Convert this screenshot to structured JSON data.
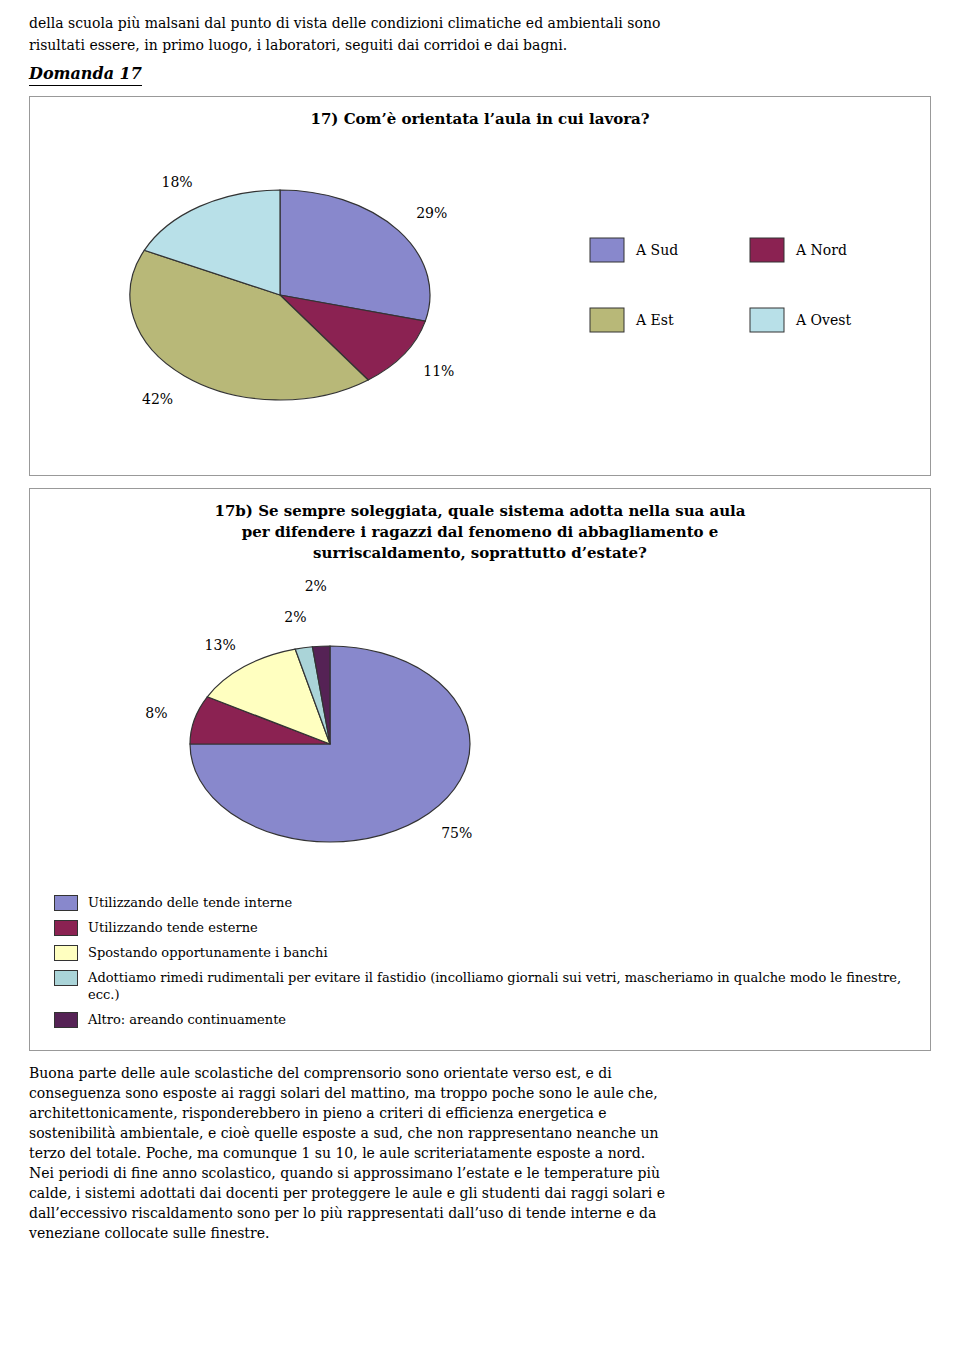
{
  "chart_data": [
    {
      "type": "pie",
      "title": "17) Com’è orientata l’aula in cui lavora?",
      "categories": [
        "A Sud",
        "A Nord",
        "A Est",
        "A Ovest"
      ],
      "values": [
        29,
        11,
        42,
        18
      ],
      "value_labels": [
        "29%",
        "11%",
        "42%",
        "18%"
      ],
      "colors": [
        "#8888cc",
        "#8b2252",
        "#b8b878",
        "#b8e0e8"
      ],
      "data_labels": true,
      "legend": "right",
      "annotations": [
        "della scuola più malsani dal punto di vista delle condizioni climatiche ed ambientali sono",
        "risultati essere, in primo luogo, i laboratori, seguiti dai corridoi e dai bagni.",
        "Domanda 17"
      ]
    },
    {
      "type": "pie",
      "title": "17b) Se sempre soleggiata, quale sistema adotta nella sua aula\nper difendere i ragazzi dal fenomeno di abbagliamento e\nsurriscaldamento, soprattutto d’estate?",
      "categories": [
        "Utilizzando delle tende interne",
        "Utilizzando tende esterne",
        "Spostando opportunamente i banchi",
        "Adottiamo rimedi rudimentali per evitare il fastidio (incolliamo giornali sui vetri, mascheriamo in qualche modo le finestre, ecc.)",
        "Altro: areando continuamente"
      ],
      "values": [
        75,
        8,
        13,
        2,
        2
      ],
      "value_labels": [
        "75%",
        "8%",
        "13%",
        "2%",
        "2%"
      ],
      "colors": [
        "#8888cc",
        "#8b2252",
        "#ffffc0",
        "#aad4d8",
        "#552255"
      ],
      "data_labels": true,
      "legend": "bottom",
      "annotations": [
        "Buona parte delle aule scolastiche del comprensorio sono orientate verso est, e di",
        "conseguenza sono esposte ai raggi solari del mattino, ma troppo poche sono le aule che,",
        "architettonicamente, risponderebbero in pieno a criteri di efficienza energetica e",
        "sostenibilità ambientale, e cioè quelle esposte a sud, che non rappresentano neanche un",
        "terzo del totale. Poche, ma comunque 1 su 10, le aule scriteriatamente esposte a nord.",
        "Nei periodi di fine anno scolastico, quando si approssimano l’estate e le temperature più",
        "calde, i sistemi adottati dai docenti per proteggere le aule e gli studenti dai raggi solari e",
        "dall’eccessivo riscaldamento sono per lo più rappresentati dall’uso di tende interne e da",
        "veneziane collocate sulle finestre."
      ]
    }
  ]
}
